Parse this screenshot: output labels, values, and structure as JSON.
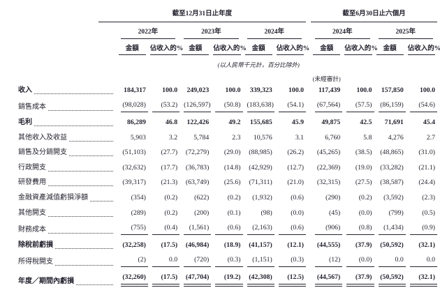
{
  "table": {
    "group_headers": [
      {
        "label": "截至12月31日止年度"
      },
      {
        "label": "截至6月30日止六個月"
      }
    ],
    "year_headers": [
      "2022年",
      "2023年",
      "2024年",
      "2024年",
      "2025年"
    ],
    "sub_headers": {
      "amount": "金額",
      "pct": "佔收入的%"
    },
    "notes": {
      "currency": "(以人民幣千元計，百分比除外)",
      "unaudited": "(未經審計)"
    },
    "rows": [
      {
        "label": "收入",
        "bold": true,
        "values": [
          "184,317",
          "100.0",
          "249,023",
          "100.0",
          "339,323",
          "100.0",
          "117,439",
          "100.0",
          "157,850",
          "100.0"
        ]
      },
      {
        "label": "銷售成本",
        "rule_below": true,
        "values": [
          "(98,028)",
          "(53.2)",
          "(126,597)",
          "(50.8)",
          "(183,638)",
          "(54.1)",
          "(67,564)",
          "(57.5)",
          "(86,159)",
          "(54.6)"
        ]
      },
      {
        "label": "毛利",
        "bold": true,
        "values": [
          "86,289",
          "46.8",
          "122,426",
          "49.2",
          "155,685",
          "45.9",
          "49,875",
          "42.5",
          "71,691",
          "45.4"
        ]
      },
      {
        "label": "其他收入及收益",
        "values": [
          "5,903",
          "3.2",
          "5,784",
          "2.3",
          "10,576",
          "3.1",
          "6,760",
          "5.8",
          "4,276",
          "2.7"
        ]
      },
      {
        "label": "銷售及分銷開支",
        "values": [
          "(51,103)",
          "(27.7)",
          "(72,279)",
          "(29.0)",
          "(88,985)",
          "(26.2)",
          "(45,265)",
          "(38.5)",
          "(48,865)",
          "(31.0)"
        ]
      },
      {
        "label": "行政開支",
        "values": [
          "(32,632)",
          "(17.7)",
          "(36,783)",
          "(14.8)",
          "(42,929)",
          "(12.7)",
          "(22,369)",
          "(19.0)",
          "(33,282)",
          "(21.1)"
        ]
      },
      {
        "label": "研發費用",
        "values": [
          "(39,317)",
          "(21.3)",
          "(63,749)",
          "(25.6)",
          "(71,311)",
          "(21.0)",
          "(32,315)",
          "(27.5)",
          "(38,587)",
          "(24.4)"
        ]
      },
      {
        "label": "金融資產減值虧損淨額",
        "values": [
          "(354)",
          "(0.2)",
          "(622)",
          "(0.2)",
          "(1,932)",
          "(0.6)",
          "(290)",
          "(0.2)",
          "(3,592)",
          "(2.3)"
        ]
      },
      {
        "label": "其他開支",
        "values": [
          "(289)",
          "(0.2)",
          "(200)",
          "(0.1)",
          "(98)",
          "(0.0)",
          "(45)",
          "(0.0)",
          "(799)",
          "(0.5)"
        ]
      },
      {
        "label": "財務成本",
        "rule_below": true,
        "values": [
          "(755)",
          "(0.4)",
          "(1,561)",
          "(0.6)",
          "(2,163)",
          "(0.6)",
          "(906)",
          "(0.8)",
          "(1,434)",
          "(0.9)"
        ]
      },
      {
        "label": "除稅前虧損",
        "bold": true,
        "values": [
          "(32,258)",
          "(17.5)",
          "(46,984)",
          "(18.9)",
          "(41,157)",
          "(12.1)",
          "(44,555)",
          "(37.9)",
          "(50,592)",
          "(32.1)"
        ]
      },
      {
        "label": "所得稅開支",
        "rule_below": true,
        "values": [
          "(2)",
          "0.0",
          "(720)",
          "(0.3)",
          "(1,151)",
          "(0.3)",
          "(12)",
          "(0.0)",
          "0.0",
          "0.0"
        ]
      },
      {
        "label": "年度／期間內虧損",
        "bold": true,
        "double_rule_below": true,
        "values": [
          "(32,260)",
          "(17.5)",
          "(47,704)",
          "(19.2)",
          "(42,308)",
          "(12.5)",
          "(44,567)",
          "(37.9)",
          "(50,592)",
          "(32.1)"
        ]
      }
    ]
  }
}
